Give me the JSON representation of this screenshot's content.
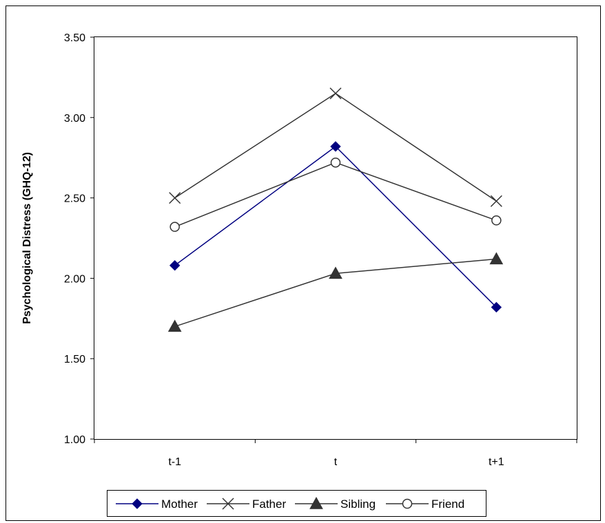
{
  "chart_data": {
    "type": "line",
    "categories": [
      "t-1",
      "t",
      "t+1"
    ],
    "ylabel": "Psychological Distress (GHQ-12)",
    "xlabel": "",
    "ylim": [
      1.0,
      3.5
    ],
    "yticks": [
      "1.00",
      "1.50",
      "2.00",
      "2.50",
      "3.00",
      "3.50"
    ],
    "yticks_values": [
      1.0,
      1.5,
      2.0,
      2.5,
      3.0,
      3.5
    ],
    "grid": false,
    "legend_position": "bottom",
    "series": [
      {
        "name": "Mother",
        "values": [
          2.08,
          2.82,
          1.82
        ],
        "color": "#000080",
        "marker": "diamond"
      },
      {
        "name": "Father",
        "values": [
          2.5,
          3.15,
          2.48
        ],
        "color": "#333333",
        "marker": "x"
      },
      {
        "name": "Sibling",
        "values": [
          1.7,
          2.03,
          2.12
        ],
        "color": "#333333",
        "marker": "triangle"
      },
      {
        "name": "Friend",
        "values": [
          2.32,
          2.72,
          2.36
        ],
        "color": "#333333",
        "marker": "circle"
      }
    ]
  }
}
